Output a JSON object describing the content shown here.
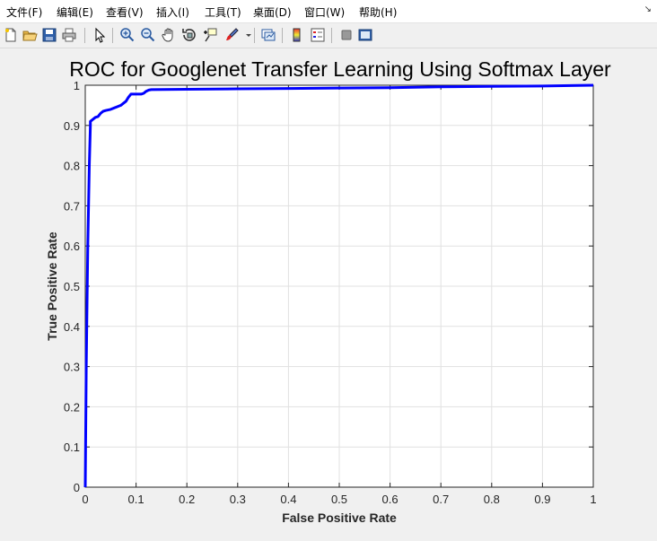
{
  "menubar": {
    "items": [
      "文件(F)",
      "编辑(E)",
      "查看(V)",
      "插入(I)",
      "工具(T)",
      "桌面(D)",
      "窗口(W)",
      "帮助(H)"
    ],
    "corner_icon": "dock-arrow-icon"
  },
  "toolbar": {
    "buttons": [
      "new-figure-icon",
      "open-file-icon",
      "save-icon",
      "print-icon",
      "select-arrow-icon",
      "zoom-in-icon",
      "zoom-out-icon",
      "pan-hand-icon",
      "rotate-3d-icon",
      "data-cursor-icon",
      "brush-icon",
      "link-plot-icon",
      "colorbar-icon",
      "legend-icon",
      "hide-plot-tools-icon",
      "show-plot-tools-icon"
    ]
  },
  "colors": {
    "line": "#0000ff",
    "axes_bg": "#ffffff",
    "figure_bg": "#f0f0f0",
    "grid": "#e1e1e1"
  },
  "chart_data": {
    "type": "line",
    "title": "ROC for Googlenet Transfer Learning Using Softmax Layer",
    "xlabel": "False Positive Rate",
    "ylabel": "True Positive Rate",
    "xlim": [
      0,
      1
    ],
    "ylim": [
      0,
      1
    ],
    "xticks": [
      "0",
      "0.1",
      "0.2",
      "0.3",
      "0.4",
      "0.5",
      "0.6",
      "0.7",
      "0.8",
      "0.9",
      "1"
    ],
    "yticks": [
      "0",
      "0.1",
      "0.2",
      "0.3",
      "0.4",
      "0.5",
      "0.6",
      "0.7",
      "0.8",
      "0.9",
      "1"
    ],
    "grid": true,
    "series": [
      {
        "x": [
          0,
          0.002,
          0.005,
          0.008,
          0.01,
          0.01,
          0.015,
          0.02,
          0.025,
          0.03,
          0.035,
          0.04,
          0.05,
          0.06,
          0.07,
          0.075,
          0.08,
          0.085,
          0.09,
          0.1,
          0.11,
          0.115,
          0.12,
          0.125,
          0.13,
          0.2,
          0.3,
          0.4,
          0.5,
          0.6,
          0.7,
          0.8,
          0.9,
          1.0
        ],
        "y": [
          0,
          0.3,
          0.6,
          0.8,
          0.9,
          0.91,
          0.915,
          0.92,
          0.922,
          0.93,
          0.935,
          0.937,
          0.94,
          0.945,
          0.95,
          0.955,
          0.96,
          0.97,
          0.978,
          0.978,
          0.978,
          0.98,
          0.985,
          0.988,
          0.989,
          0.99,
          0.991,
          0.992,
          0.993,
          0.994,
          0.996,
          0.997,
          0.998,
          1.0
        ]
      }
    ]
  }
}
